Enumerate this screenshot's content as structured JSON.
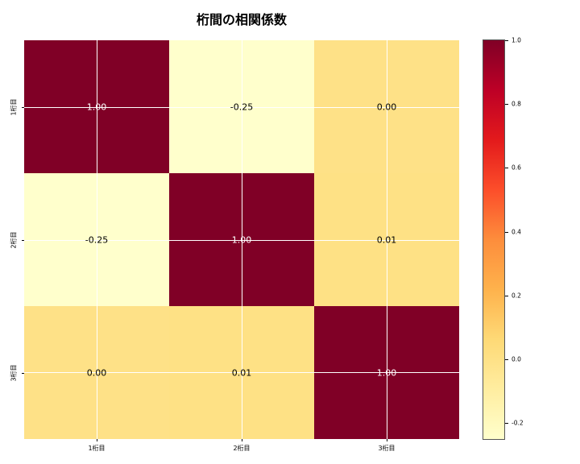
{
  "chart_data": {
    "type": "heatmap",
    "title": "桁間の相関係数",
    "categories": [
      "1桁目",
      "2桁目",
      "3桁目"
    ],
    "matrix": [
      [
        1.0,
        -0.25,
        0.0
      ],
      [
        -0.25,
        1.0,
        0.01
      ],
      [
        0.0,
        0.01,
        1.0
      ]
    ],
    "cell_labels": [
      [
        "1.00",
        "-0.25",
        "0.00"
      ],
      [
        "-0.25",
        "1.00",
        "0.01"
      ],
      [
        "0.00",
        "0.01",
        "1.00"
      ]
    ],
    "cell_colors": [
      [
        "#800026",
        "#ffffcc",
        "#fee187"
      ],
      [
        "#ffffcc",
        "#800026",
        "#fee185"
      ],
      [
        "#fee187",
        "#fee185",
        "#800026"
      ]
    ],
    "cell_text_colors": [
      [
        "#ffffff",
        "#000000",
        "#000000"
      ],
      [
        "#000000",
        "#ffffff",
        "#000000"
      ],
      [
        "#000000",
        "#000000",
        "#ffffff"
      ]
    ],
    "colormap": "YlOrRd",
    "vmin": -0.25,
    "vmax": 1.0,
    "grid": true,
    "gridline_color": "#ffffff",
    "legend_position": "right-colorbar",
    "colorbar_ticks": [
      "1.0",
      "0.8",
      "0.6",
      "0.4",
      "0.2",
      "0.0",
      "-0.2"
    ],
    "colorbar_gradient_top_to_bottom": [
      "#800026",
      "#bd0026",
      "#e31a1c",
      "#fc4e2a",
      "#fd8d3c",
      "#feb24c",
      "#fed976",
      "#ffeda0",
      "#ffffcc"
    ]
  }
}
